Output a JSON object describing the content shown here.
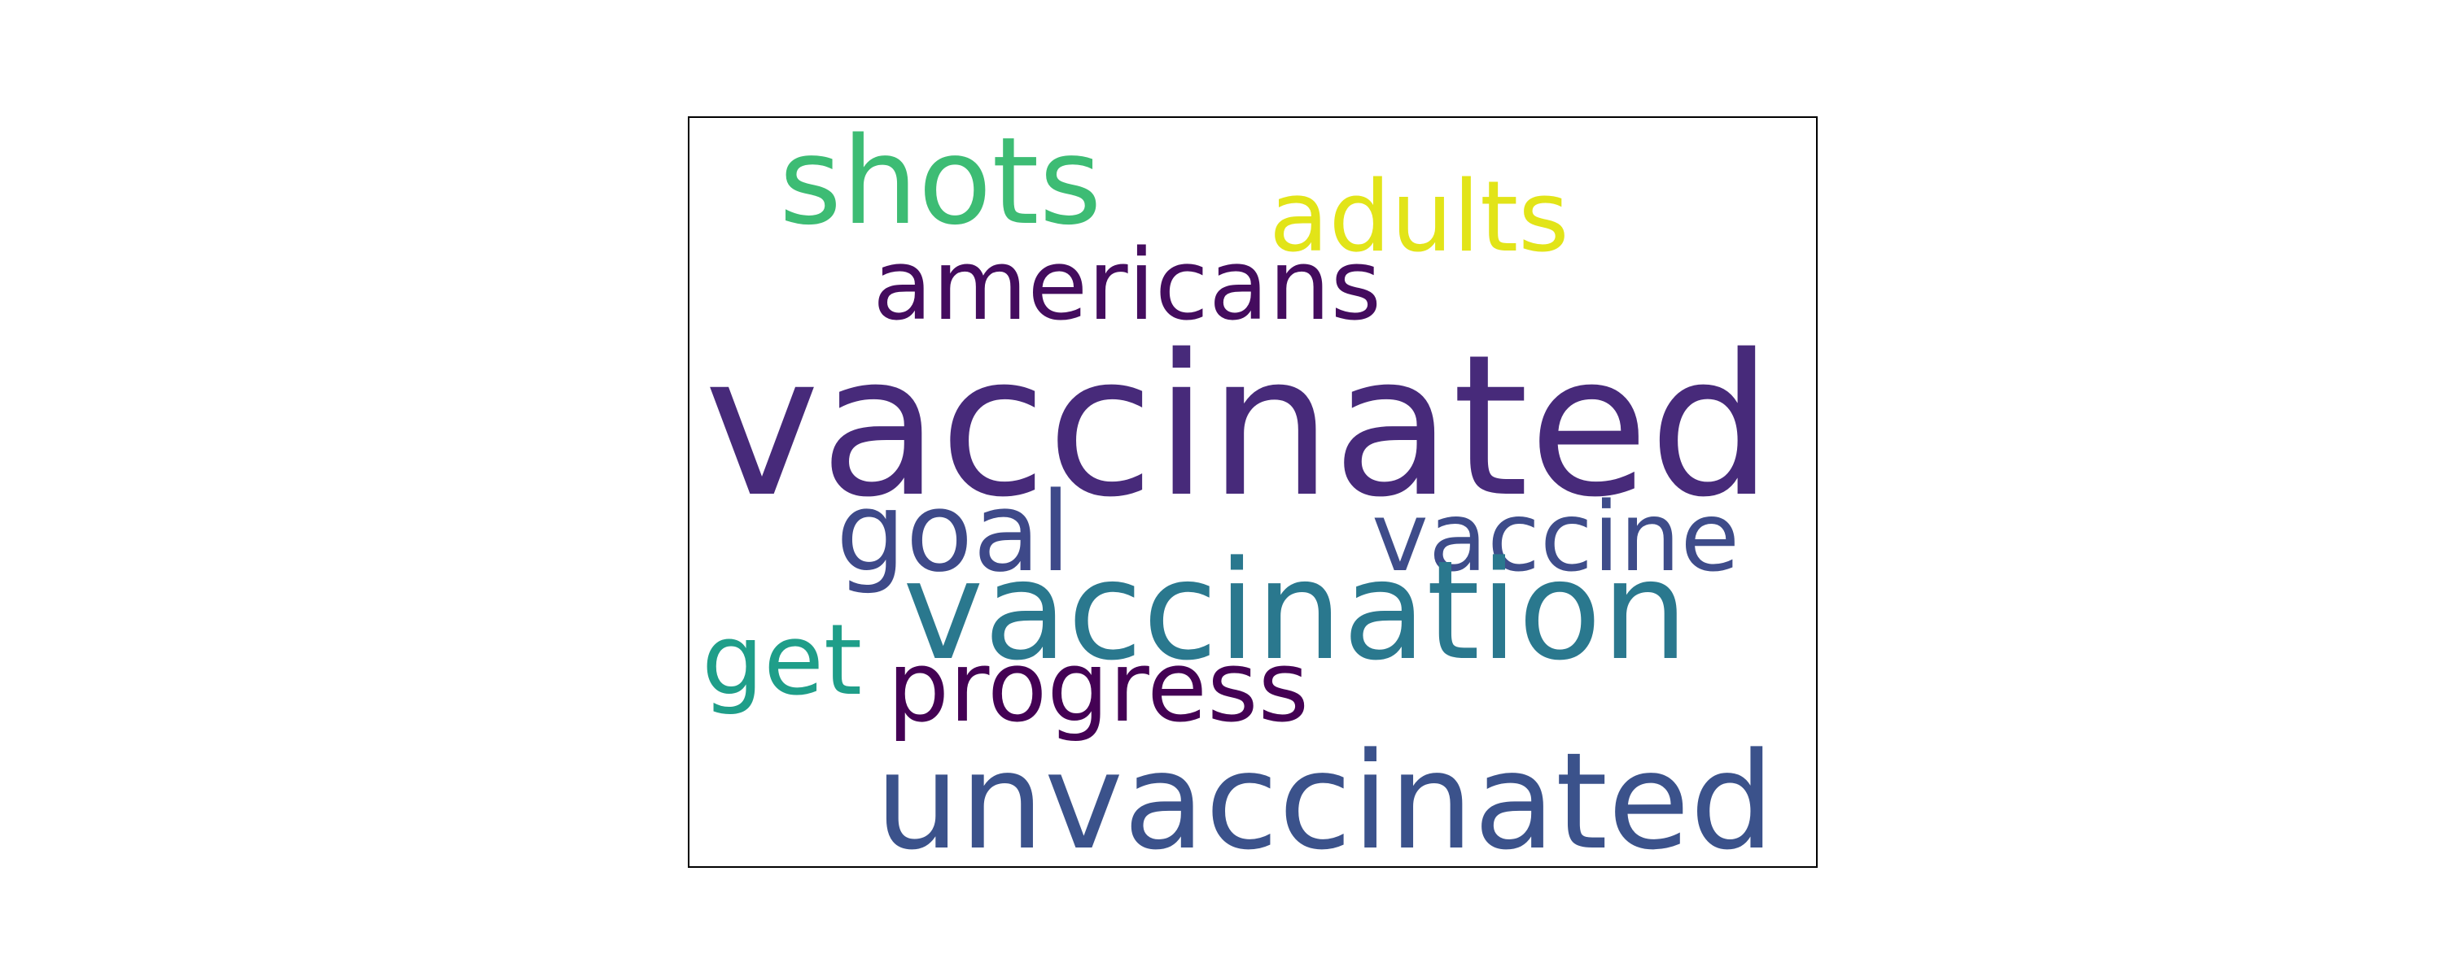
{
  "words": {
    "shots": {
      "text": "shots",
      "color": "#3dbc74"
    },
    "adults": {
      "text": "adults",
      "color": "#e2e418"
    },
    "americans": {
      "text": "americans",
      "color": "#440c5e"
    },
    "vaccinated": {
      "text": "vaccinated",
      "color": "#472a7a"
    },
    "goal": {
      "text": "goal",
      "color": "#3e4989"
    },
    "vaccine": {
      "text": "vaccine",
      "color": "#3e4c8a"
    },
    "vaccination": {
      "text": "vaccination",
      "color": "#2a788e"
    },
    "get": {
      "text": "get",
      "color": "#1f9e89"
    },
    "progress": {
      "text": "progress",
      "color": "#440154"
    },
    "unvaccinated": {
      "text": "unvaccinated",
      "color": "#3b528b"
    }
  }
}
